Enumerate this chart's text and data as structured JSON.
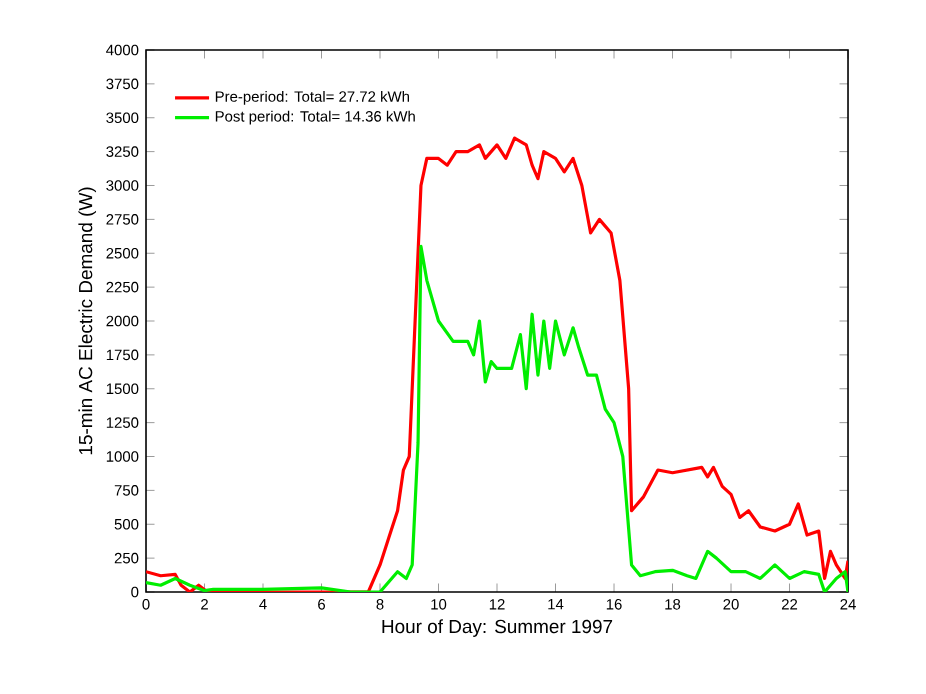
{
  "chart_data": {
    "type": "line",
    "xlabel": "Hour of Day: Summer 1997",
    "ylabel": "15-min AC Electric Demand (W)",
    "xlim": [
      0,
      24
    ],
    "ylim": [
      0,
      4000
    ],
    "xticks": [
      0,
      2,
      4,
      6,
      8,
      10,
      12,
      14,
      16,
      18,
      20,
      22,
      24
    ],
    "yticks": [
      0,
      250,
      500,
      750,
      1000,
      1250,
      1500,
      1750,
      2000,
      2250,
      2500,
      2750,
      3000,
      3250,
      3500,
      3750,
      4000
    ],
    "grid": false,
    "legend": "top left",
    "marker": "none",
    "line_style": "solid",
    "series": [
      {
        "name": "Pre-period: Total= 27.72 kWh",
        "color": "#ff0000",
        "x": [
          0,
          0.5,
          1,
          1.2,
          1.5,
          1.8,
          2.1,
          3,
          5,
          7,
          7.6,
          8,
          8.3,
          8.6,
          8.8,
          9.0,
          9.2,
          9.4,
          9.6,
          10,
          10.3,
          10.6,
          11,
          11.4,
          11.6,
          12,
          12.3,
          12.6,
          13,
          13.2,
          13.4,
          13.6,
          14,
          14.3,
          14.6,
          14.9,
          15.2,
          15.5,
          15.9,
          16.2,
          16.5,
          16.6,
          17,
          17.5,
          18,
          18.5,
          19,
          19.2,
          19.4,
          19.7,
          20,
          20.3,
          20.6,
          21,
          21.5,
          22,
          22.3,
          22.6,
          23,
          23.2,
          23.4,
          23.6,
          23.9,
          24
        ],
        "values": [
          150,
          120,
          130,
          50,
          0,
          50,
          0,
          0,
          0,
          0,
          0,
          200,
          400,
          600,
          900,
          1000,
          2000,
          3000,
          3200,
          3200,
          3150,
          3250,
          3250,
          3300,
          3200,
          3300,
          3200,
          3350,
          3300,
          3150,
          3050,
          3250,
          3200,
          3100,
          3200,
          3000,
          2650,
          2750,
          2650,
          2300,
          1500,
          600,
          700,
          900,
          880,
          900,
          920,
          850,
          920,
          780,
          720,
          550,
          600,
          480,
          450,
          500,
          650,
          420,
          450,
          100,
          300,
          200,
          100,
          230
        ]
      },
      {
        "name": "Post period: Total= 14.36 kWh",
        "color": "#00ee00",
        "x": [
          0,
          0.5,
          1,
          1.5,
          2,
          2.3,
          3,
          4,
          6,
          7,
          8,
          8.2,
          8.6,
          8.9,
          9.1,
          9.3,
          9.4,
          9.6,
          10,
          10.5,
          11,
          11.2,
          11.4,
          11.6,
          11.8,
          12,
          12.5,
          12.8,
          13,
          13.2,
          13.4,
          13.6,
          13.8,
          14,
          14.3,
          14.6,
          14.8,
          15.1,
          15.4,
          15.7,
          16,
          16.3,
          16.6,
          16.9,
          17.4,
          18,
          18.5,
          18.8,
          19.2,
          19.5,
          20,
          20.5,
          21,
          21.5,
          22,
          22.5,
          23,
          23.2,
          23.6,
          23.9,
          24
        ],
        "values": [
          70,
          50,
          100,
          50,
          10,
          20,
          20,
          20,
          30,
          0,
          0,
          50,
          150,
          100,
          200,
          1100,
          2550,
          2300,
          2000,
          1850,
          1850,
          1750,
          2000,
          1550,
          1700,
          1650,
          1650,
          1900,
          1500,
          2050,
          1600,
          2000,
          1650,
          2000,
          1750,
          1950,
          1800,
          1600,
          1600,
          1350,
          1250,
          1000,
          200,
          120,
          150,
          160,
          120,
          100,
          300,
          250,
          150,
          150,
          100,
          200,
          100,
          150,
          130,
          0,
          100,
          150,
          0
        ]
      }
    ]
  }
}
